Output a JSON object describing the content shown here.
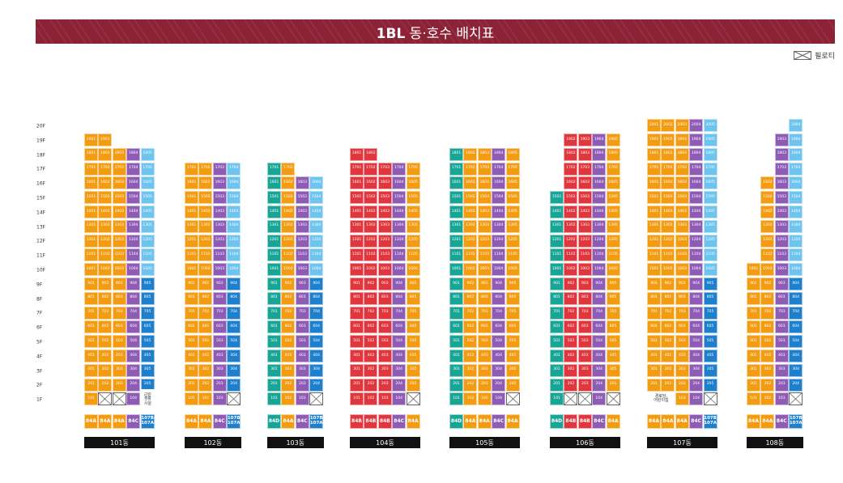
{
  "title": {
    "bold": "1BL",
    "rest": " 동·호수 배치표"
  },
  "legend": {
    "label": "필로티",
    "icon": "piloti-icon"
  },
  "colors": {
    "84A": "#f39c12",
    "84B": "#e0363d",
    "84C": "#8e5bb5",
    "84D": "#18a595",
    "107": "#1e7fcc",
    "low": "#6cc4ef",
    "bg": "#8c2236"
  },
  "floors": [
    "20F",
    "19F",
    "18F",
    "17F",
    "16F",
    "15F",
    "14F",
    "13F",
    "12F",
    "11F",
    "10F",
    "9F",
    "8F",
    "7F",
    "6F",
    "5F",
    "4F",
    "3F",
    "2F",
    "1F"
  ],
  "buildings": [
    {
      "name": "101동",
      "types": [
        "84A",
        "84A",
        "84A",
        "84C",
        "107B/107A"
      ],
      "top": [
        19,
        19,
        18,
        18,
        18
      ],
      "bot": [
        2,
        2,
        2,
        2,
        2
      ],
      "f1": [
        "101",
        "x",
        "x",
        "104",
        "note"
      ],
      "note": "근린\n생활\n시설"
    },
    {
      "name": "102동",
      "types": [
        "84A",
        "84A",
        "84C",
        "107B/107A"
      ],
      "top": [
        17,
        17,
        17,
        17
      ],
      "bot": [
        2,
        2,
        2,
        2
      ],
      "f1": [
        "101",
        "102",
        "103",
        "x"
      ]
    },
    {
      "name": "103동",
      "types": [
        "84D",
        "84A",
        "84C",
        "107B/107A"
      ],
      "top": [
        17,
        17,
        16,
        16
      ],
      "bot": [
        2,
        2,
        2,
        2
      ],
      "f1": [
        "101",
        "102",
        "103",
        "x"
      ]
    },
    {
      "name": "104동",
      "types": [
        "84B",
        "84B",
        "84B",
        "84C",
        "84A"
      ],
      "top": [
        18,
        18,
        17,
        17,
        17
      ],
      "bot": [
        2,
        2,
        2,
        2,
        2
      ],
      "f1": [
        "101",
        "102",
        "103",
        "104",
        "x"
      ]
    },
    {
      "name": "105동",
      "types": [
        "84D",
        "84A",
        "84A",
        "84C",
        "84A"
      ],
      "top": [
        18,
        18,
        18,
        18,
        18
      ],
      "bot": [
        2,
        2,
        2,
        2,
        2
      ],
      "f1": [
        "101",
        "102",
        "103",
        "104",
        "x"
      ]
    },
    {
      "name": "106동",
      "types": [
        "84D",
        "84B",
        "84B",
        "84C",
        "84A"
      ],
      "top": [
        15,
        19,
        19,
        19,
        19
      ],
      "bot": [
        2,
        2,
        2,
        2,
        2
      ],
      "f1": [
        "101",
        "x",
        "x",
        "104",
        "x"
      ]
    },
    {
      "name": "107동",
      "types": [
        "84A",
        "84A",
        "84A",
        "84C",
        "107B/107A"
      ],
      "top": [
        20,
        20,
        20,
        20,
        20
      ],
      "bot": [
        2,
        2,
        2,
        2,
        2
      ],
      "f1": [
        "note",
        "",
        "103",
        "104",
        "x"
      ],
      "note": "경로당,\n어린이집"
    },
    {
      "name": "108동",
      "types": [
        "84A",
        "84A",
        "84C",
        "107B/107A"
      ],
      "top": [
        10,
        16,
        19,
        20
      ],
      "bot": [
        2,
        2,
        2,
        2
      ],
      "f1": [
        "101",
        "102",
        "103",
        "x"
      ]
    }
  ]
}
